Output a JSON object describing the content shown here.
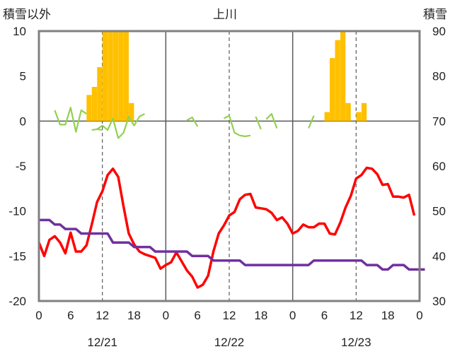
{
  "chart_data": {
    "type": "bar+line",
    "title": "上川",
    "left_axis_label": "積雪以外",
    "right_axis_label": "積雪",
    "left_ylim": [
      -20,
      10
    ],
    "left_yticks": [
      10,
      5,
      0,
      -5,
      -10,
      -15,
      -20
    ],
    "right_ylim": [
      30,
      90
    ],
    "right_yticks": [
      90,
      80,
      70,
      60,
      50,
      40,
      30
    ],
    "x_range_hours": [
      0,
      72
    ],
    "x_tick_labels": [
      "0",
      "6",
      "12",
      "18",
      "0",
      "6",
      "12",
      "18",
      "0",
      "6",
      "12",
      "18",
      "0"
    ],
    "day_labels": [
      "12/21",
      "12/22",
      "12/23"
    ],
    "grid": "vertical lines at day boundaries (solid) and noon (dashed)",
    "colors": {
      "bars": "#ffc000",
      "red_line": "#ff0000",
      "purple_line": "#7030a0",
      "green_line": "#92d050",
      "axis": "#808080",
      "grid": "#595959"
    },
    "series": [
      {
        "type": "bar",
        "axis": "left",
        "color": "#ffc000",
        "points": [
          [
            9.5,
            2.9
          ],
          [
            10.5,
            3.8
          ],
          [
            11.5,
            6
          ],
          [
            12.5,
            10
          ],
          [
            13.5,
            10
          ],
          [
            14.5,
            10
          ],
          [
            15.5,
            10
          ],
          [
            16.5,
            10
          ],
          [
            17.5,
            2
          ],
          [
            54.5,
            1
          ],
          [
            55.5,
            7
          ],
          [
            56.5,
            9
          ],
          [
            57.5,
            10
          ],
          [
            58.5,
            2
          ],
          [
            60.5,
            1
          ],
          [
            61.5,
            2
          ]
        ]
      },
      {
        "type": "line",
        "axis": "left",
        "color": "#ff0000",
        "points": [
          [
            0,
            -13.5
          ],
          [
            1,
            -15
          ],
          [
            2,
            -13.2
          ],
          [
            3,
            -12.8
          ],
          [
            4,
            -13.5
          ],
          [
            5,
            -14.7
          ],
          [
            6,
            -12.4
          ],
          [
            7,
            -14.5
          ],
          [
            8,
            -14.5
          ],
          [
            9,
            -13.8
          ],
          [
            10,
            -11.5
          ],
          [
            11,
            -9
          ],
          [
            12,
            -7.8
          ],
          [
            13,
            -6
          ],
          [
            14,
            -5.3
          ],
          [
            15,
            -6.2
          ],
          [
            16,
            -9.5
          ],
          [
            17,
            -12.5
          ],
          [
            18,
            -13.7
          ],
          [
            19,
            -14.5
          ],
          [
            20,
            -14.8
          ],
          [
            21,
            -15
          ],
          [
            22,
            -15.2
          ],
          [
            23,
            -16.4
          ],
          [
            24,
            -16
          ],
          [
            25,
            -15.7
          ],
          [
            26,
            -14.6
          ],
          [
            27,
            -15.6
          ],
          [
            28,
            -16.6
          ],
          [
            29,
            -17.3
          ],
          [
            30,
            -18.5
          ],
          [
            31,
            -18.2
          ],
          [
            32,
            -17.2
          ],
          [
            33,
            -14.5
          ],
          [
            34,
            -12.5
          ],
          [
            35,
            -11.6
          ],
          [
            36,
            -10.5
          ],
          [
            37,
            -10.1
          ],
          [
            38,
            -8.7
          ],
          [
            39,
            -8.2
          ],
          [
            40,
            -8.1
          ],
          [
            41,
            -9.6
          ],
          [
            42,
            -9.7
          ],
          [
            43,
            -9.8
          ],
          [
            44,
            -10.2
          ],
          [
            45,
            -11
          ],
          [
            46,
            -10.7
          ],
          [
            47,
            -11.4
          ],
          [
            48,
            -12.5
          ],
          [
            49,
            -12.2
          ],
          [
            50,
            -11.5
          ],
          [
            51,
            -11.8
          ],
          [
            52,
            -11.8
          ],
          [
            53,
            -11.4
          ],
          [
            54,
            -11.4
          ],
          [
            55,
            -12.5
          ],
          [
            56,
            -12.6
          ],
          [
            57,
            -11.3
          ],
          [
            58,
            -9.6
          ],
          [
            59,
            -8.3
          ],
          [
            60,
            -6.4
          ],
          [
            61,
            -6
          ],
          [
            62,
            -5.2
          ],
          [
            63,
            -5.3
          ],
          [
            64,
            -5.9
          ],
          [
            65,
            -7.1
          ],
          [
            66,
            -7
          ],
          [
            67,
            -8.4
          ],
          [
            68,
            -8.4
          ],
          [
            69,
            -8.5
          ],
          [
            70,
            -8.2
          ],
          [
            71,
            -10.5
          ]
        ]
      },
      {
        "type": "line",
        "axis": "right",
        "color": "#7030a0",
        "points": [
          [
            0,
            48
          ],
          [
            2,
            48
          ],
          [
            3,
            47
          ],
          [
            4,
            47
          ],
          [
            5,
            46
          ],
          [
            7,
            46
          ],
          [
            8,
            45
          ],
          [
            13,
            45
          ],
          [
            14,
            43
          ],
          [
            17,
            43
          ],
          [
            18,
            42
          ],
          [
            21,
            42
          ],
          [
            22,
            41
          ],
          [
            28,
            41
          ],
          [
            29,
            40
          ],
          [
            32,
            40
          ],
          [
            33,
            39
          ],
          [
            38,
            39
          ],
          [
            39,
            38
          ],
          [
            51,
            38
          ],
          [
            52,
            39
          ],
          [
            61,
            39
          ],
          [
            62,
            38
          ],
          [
            64,
            38
          ],
          [
            65,
            37
          ],
          [
            66,
            37
          ],
          [
            67,
            38
          ],
          [
            69,
            38
          ],
          [
            70,
            37
          ],
          [
            73,
            37
          ]
        ]
      },
      {
        "type": "line",
        "axis": "left",
        "color": "#92d050",
        "segments": [
          [
            [
              3,
              1.2
            ],
            [
              4,
              -0.4
            ],
            [
              5,
              -0.4
            ],
            [
              6,
              1.5
            ],
            [
              7,
              -1.2
            ],
            [
              8,
              1.2
            ],
            [
              9,
              0.8
            ]
          ],
          [
            [
              10,
              -1
            ],
            [
              11,
              -0.9
            ],
            [
              12,
              -0.5
            ],
            [
              13,
              -1
            ],
            [
              14,
              0.3
            ],
            [
              15,
              -1.9
            ],
            [
              16,
              -1.3
            ],
            [
              17,
              0.5
            ],
            [
              18,
              -0.5
            ],
            [
              19,
              0.5
            ],
            [
              20,
              0.8
            ]
          ],
          [
            [
              11,
              -0.9
            ],
            [
              12,
              -1
            ]
          ],
          [
            [
              28,
              0.1
            ],
            [
              29,
              0.4
            ],
            [
              30,
              -0.6
            ]
          ],
          [
            [
              35,
              0.3
            ],
            [
              36,
              0.6
            ],
            [
              37,
              -1.3
            ],
            [
              38,
              -1.6
            ],
            [
              39,
              -1.7
            ],
            [
              40,
              -1.6
            ]
          ],
          [
            [
              41,
              0.5
            ],
            [
              42,
              -0.9
            ]
          ],
          [
            [
              43,
              0.2
            ],
            [
              44,
              0.8
            ],
            [
              45,
              -0.8
            ]
          ],
          [
            [
              51,
              -0.8
            ],
            [
              52,
              0.6
            ]
          ]
        ]
      }
    ]
  }
}
